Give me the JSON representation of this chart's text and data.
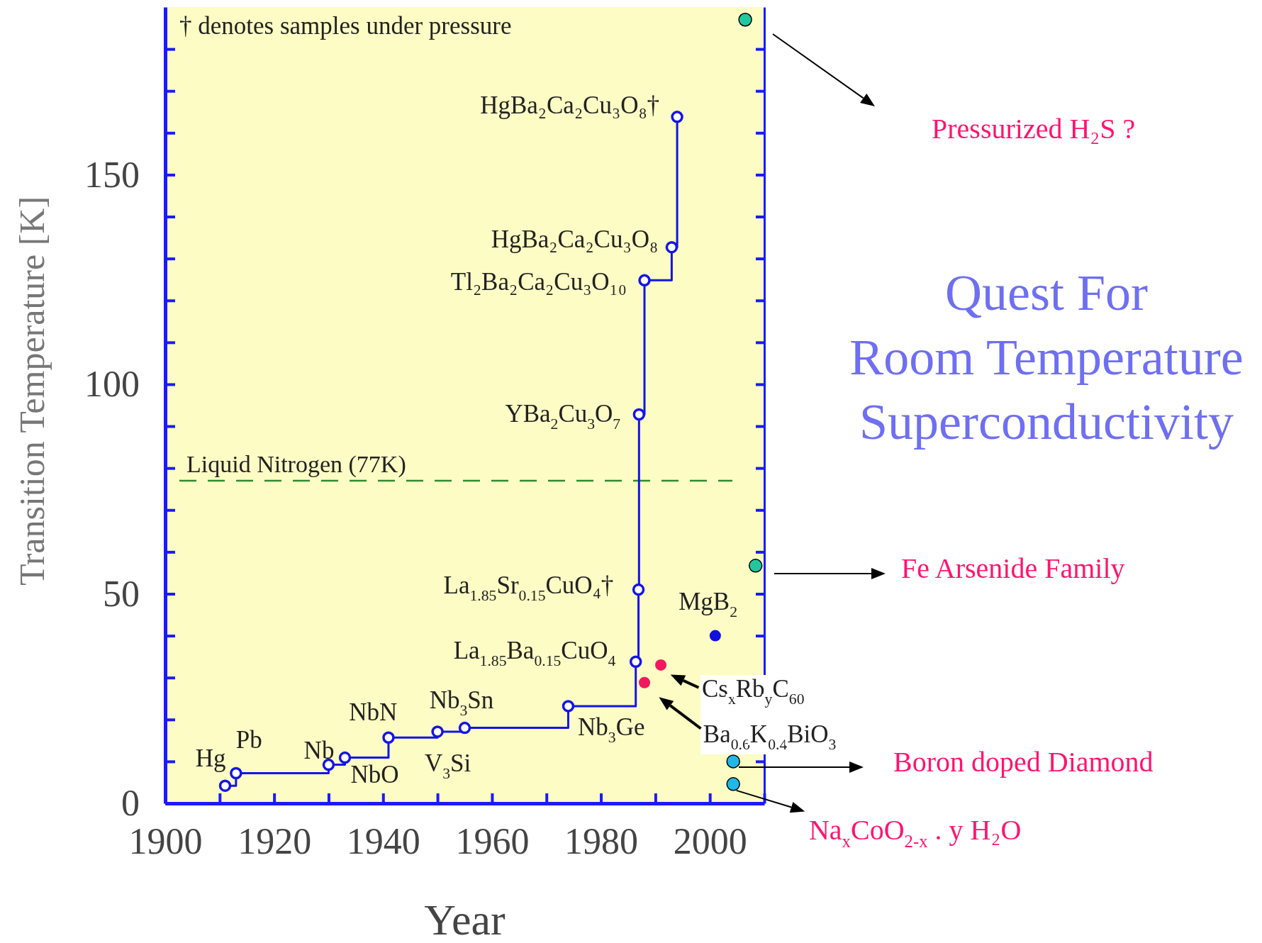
{
  "chart_data": {
    "type": "step",
    "title": "Quest For\nRoom Temperature\nSuperconductivity",
    "xlabel": "Year",
    "ylabel": "Transition Temperature [K]",
    "xlim": [
      1900,
      2010
    ],
    "ylim": [
      0,
      190
    ],
    "xticks": [
      1900,
      {
        "value": 1910,
        "label": null
      },
      1920,
      {
        "value": 1930,
        "label": null
      },
      1940,
      {
        "value": 1950,
        "label": null
      },
      1960,
      {
        "value": 1970,
        "label": null
      },
      1980,
      {
        "value": 1990,
        "label": null
      },
      2000,
      {
        "value": 2010,
        "label": null
      }
    ],
    "yticks": [
      0,
      {
        "value": 10,
        "label": null
      },
      {
        "value": 20,
        "label": null
      },
      {
        "value": 30,
        "label": null
      },
      {
        "value": 40,
        "label": null
      },
      50,
      {
        "value": 60,
        "label": null
      },
      {
        "value": 70,
        "label": null
      },
      {
        "value": 80,
        "label": null
      },
      {
        "value": 90,
        "label": null
      },
      100,
      {
        "value": 110,
        "label": null
      },
      {
        "value": 120,
        "label": null
      },
      {
        "value": 130,
        "label": null
      },
      {
        "value": 140,
        "label": null
      },
      150,
      {
        "value": 160,
        "label": null
      },
      {
        "value": 170,
        "label": null
      },
      {
        "value": 180,
        "label": null
      }
    ],
    "grid": false,
    "marker": "circle",
    "series": [
      {
        "color": "#1414e6",
        "x": [
          1911,
          1913,
          1930,
          1933,
          1941,
          1950,
          1955,
          1974,
          1986.4,
          1986.9,
          1987,
          1988,
          1993,
          1994
        ],
        "values": [
          4.2,
          7.2,
          9.2,
          10.9,
          15.7,
          17.1,
          18,
          23.2,
          33.8,
          51,
          92.8,
          124.8,
          132.7,
          163.8
        ]
      },
      {
        "type": "scatter",
        "color": "#f0185e",
        "x": [
          1988,
          1991
        ],
        "values": [
          28.8,
          33
        ]
      },
      {
        "type": "scatter",
        "color": "#1010e0",
        "x": [
          2001
        ],
        "values": [
          40
        ]
      },
      {
        "type": "scatter",
        "color": "#20b8e8",
        "x": [
          2004.3,
          2004.3
        ],
        "values": [
          10,
          4.6
        ]
      },
      {
        "type": "scatter",
        "color": "#20c8a0",
        "x": [
          2008.4,
          2006.5
        ],
        "values": [
          56.7,
          187
        ]
      }
    ],
    "ref_lines": [
      {
        "axis": "y",
        "value": 77,
        "label": "Liquid Nitrogen (77K)",
        "color": "#2e8b2e",
        "line_style": "dashed"
      }
    ],
    "annotations": [
      {
        "text": "Hg",
        "x": 1911,
        "y": 4.2
      },
      {
        "text": "Pb",
        "x": 1913,
        "y": 7.2
      },
      {
        "text": "Nb",
        "x": 1930,
        "y": 9.2
      },
      {
        "text": "NbO",
        "x": 1933,
        "y": 10.9
      },
      {
        "text": "NbN",
        "x": 1941,
        "y": 15.7
      },
      {
        "text": "V$_{3}$Si",
        "x": 1950,
        "y": 17.1
      },
      {
        "text": "Nb$_{3}$Sn",
        "x": 1955,
        "y": 18
      },
      {
        "text": "Nb$_{3}$Ge",
        "x": 1974,
        "y": 23.2
      },
      {
        "text": "La$_{1.85}$Ba$_{0.15}$CuO$_{4}$",
        "x": 1986.4,
        "y": 33.8
      },
      {
        "text": "La$_{1.85}$Sr$_{0.15}$CuO₄†",
        "x": 1986.9,
        "y": 51
      },
      {
        "text": "YBa$_{2}$Cu$_{3}$O$_{7}$",
        "x": 1987,
        "y": 92.8
      },
      {
        "text": "Tl₂Ba₂Ca₂Cu₃O₁₀",
        "x": 1988,
        "y": 124.8
      },
      {
        "text": "HgBa₂Ca₂Cu₃O₈",
        "x": 1993,
        "y": 132.7
      },
      {
        "text": "HgBa₂Ca₂Cu₃O₈†",
        "x": 1994,
        "y": 163.8
      },
      {
        "text": "MgB$_{2}$",
        "x": 2001,
        "y": 40
      },
      {
        "text": "Cs$_{x}$Rb$_{y}$C$_{60}$",
        "x": 1991,
        "y": 33
      },
      {
        "text": "Ba$_{0.6}$K$_{0.4}$BiO$_{3}$",
        "x": 1988,
        "y": 28.8
      },
      "Pressurized H₂S  ?",
      "Fe Arsenide Family",
      "Boron doped Diamond",
      {
        "text": "Na$_{x}$CoO$_{2-x}$ . y H₂O",
        "x": 2004.3,
        "y": 4.6
      },
      "† denotes samples under pressure"
    ]
  }
}
